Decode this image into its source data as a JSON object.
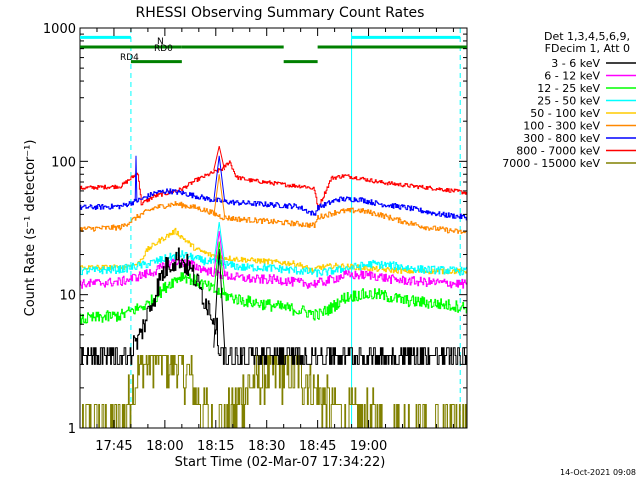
{
  "chart_data": {
    "type": "line",
    "title": "RHESSI Observing Summary Count Rates",
    "xlabel": "Start Time (02-Mar-07 17:34:22)",
    "ylabel": "Count Rate (s⁻¹ detector⁻¹)",
    "y_scale": "log",
    "ylim": [
      1,
      1000
    ],
    "xlim_minutes": [
      -2,
      112
    ],
    "x_ticks": [
      {
        "label": "17:45",
        "minute": 8
      },
      {
        "label": "18:00",
        "minute": 23
      },
      {
        "label": "18:15",
        "minute": 38
      },
      {
        "label": "18:30",
        "minute": 53
      },
      {
        "label": "18:45",
        "minute": 68
      },
      {
        "label": "19:00",
        "minute": 83
      }
    ],
    "y_ticks": [
      {
        "label": "1",
        "value": 1
      },
      {
        "label": "10",
        "value": 10
      },
      {
        "label": "100",
        "value": 100
      },
      {
        "label": "1000",
        "value": 1000
      }
    ],
    "legend_header": [
      "Det 1,3,4,5,6,9,",
      "FDecim 1, Att 0"
    ],
    "legend_placement": "right",
    "timestamp": "14-Oct-2021 09:08",
    "series": [
      {
        "name": "3 - 6 keV",
        "color": "#000000",
        "x": [
          -2,
          5,
          10,
          15,
          20,
          22,
          24,
          27,
          30,
          32,
          34,
          36,
          38,
          39,
          40,
          42,
          44,
          48,
          52,
          56,
          60,
          64,
          68,
          72,
          76,
          80,
          84,
          90,
          96,
          104,
          112
        ],
        "y": [
          3.3,
          3.3,
          3.6,
          4.5,
          10,
          14,
          17,
          19,
          16,
          13,
          10,
          8,
          6,
          4,
          3.8,
          3.5,
          3.5,
          3.5,
          3.5,
          3.5,
          3.5,
          3.5,
          3.5,
          3.5,
          3.5,
          3.5,
          3.5,
          3.5,
          3.5,
          3.5,
          3.5
        ]
      },
      {
        "name": "6 - 12 keV",
        "color": "#ff00ff",
        "x": [
          -2,
          10,
          20,
          26,
          30,
          36,
          40,
          44,
          50,
          56,
          60,
          66,
          70,
          76,
          84,
          90,
          98,
          112
        ],
        "y": [
          12,
          12.5,
          15,
          18,
          17,
          15,
          14,
          13.5,
          13,
          13,
          12.5,
          12,
          12.5,
          14,
          14,
          13,
          12.5,
          12
        ]
      },
      {
        "name": "12 - 25 keV",
        "color": "#00ff00",
        "x": [
          -2,
          10,
          18,
          24,
          28,
          34,
          40,
          46,
          52,
          58,
          64,
          68,
          72,
          76,
          80,
          86,
          94,
          104,
          112
        ],
        "y": [
          6.5,
          7,
          8.5,
          12,
          14,
          12,
          10,
          9,
          8.5,
          8,
          7.5,
          7,
          8,
          9.5,
          10,
          10,
          9,
          8.5,
          8
        ]
      },
      {
        "name": "25 - 50 keV",
        "color": "#00ffff",
        "x": [
          -2,
          10,
          18,
          24,
          28,
          34,
          40,
          46,
          52,
          58,
          64,
          68,
          72,
          78,
          84,
          90,
          98,
          112
        ],
        "y": [
          15,
          15.5,
          17,
          19,
          20,
          18,
          17,
          16,
          16,
          15.5,
          15,
          14.5,
          15,
          16,
          17,
          16.5,
          15.5,
          15
        ]
      },
      {
        "name": "50 - 100 keV",
        "color": "#ffcc00",
        "x": [
          -2,
          10,
          15,
          18,
          22,
          26,
          28,
          32,
          36,
          40,
          44,
          50,
          56,
          62,
          67,
          68,
          74,
          80,
          86,
          94,
          104,
          112
        ],
        "y": [
          16,
          16,
          17,
          22,
          26,
          30,
          27,
          22,
          20,
          19,
          18.5,
          18,
          17.5,
          17,
          15,
          16,
          16.5,
          16,
          15.5,
          15,
          15,
          15
        ]
      },
      {
        "name": "100 - 300 keV",
        "color": "#ff8800",
        "x": [
          -2,
          10,
          16,
          20,
          26,
          32,
          36,
          40,
          44,
          50,
          56,
          62,
          67,
          68,
          74,
          80,
          86,
          92,
          100,
          112
        ],
        "y": [
          31,
          32,
          40,
          45,
          48,
          45,
          42,
          38,
          37,
          36,
          35,
          34,
          33,
          38,
          42,
          43,
          40,
          36,
          32,
          29
        ]
      },
      {
        "name": "300 - 800 keV",
        "color": "#0000ff",
        "x": [
          -2,
          10,
          16,
          20,
          24,
          28,
          32,
          36,
          40,
          44,
          50,
          56,
          62,
          67,
          68,
          74,
          80,
          86,
          94,
          104,
          112
        ],
        "y": [
          45,
          46,
          52,
          58,
          60,
          58,
          55,
          52,
          50,
          49,
          48,
          47,
          46,
          40,
          45,
          52,
          52,
          48,
          45,
          40,
          38
        ]
      },
      {
        "name": "800 - 7000 keV",
        "color": "#ff0000",
        "x": [
          -2,
          10,
          15,
          16,
          20,
          24,
          28,
          32,
          36,
          40,
          42,
          44,
          48,
          52,
          56,
          60,
          64,
          67,
          68,
          72,
          76,
          80,
          86,
          94,
          104,
          112
        ],
        "y": [
          63,
          65,
          82,
          48,
          55,
          58,
          62,
          72,
          80,
          88,
          100,
          76,
          72,
          70,
          68,
          66,
          65,
          62,
          44,
          75,
          78,
          75,
          70,
          66,
          62,
          58
        ]
      },
      {
        "name": "7000 - 15000 keV",
        "color": "#808000",
        "x": [
          -2,
          10,
          15,
          20,
          26,
          30,
          34,
          38,
          42,
          46,
          52,
          58,
          64,
          70,
          76,
          82,
          90,
          100,
          112
        ],
        "y": [
          1,
          1,
          2.6,
          3.5,
          3.2,
          2.4,
          1.4,
          1,
          1.2,
          1.8,
          2.5,
          2.7,
          2.4,
          1.6,
          1.2,
          1.1,
          1,
          1,
          1
        ]
      }
    ],
    "peak_spikes": [
      {
        "series": "3 - 6 keV",
        "minute": 39,
        "value": 22
      },
      {
        "series": "6 - 12 keV",
        "minute": 39,
        "value": 30
      },
      {
        "series": "12 - 25 keV",
        "minute": 39,
        "value": 25
      },
      {
        "series": "25 - 50 keV",
        "minute": 39,
        "value": 35
      },
      {
        "series": "100 - 300 keV",
        "minute": 39,
        "value": 80
      },
      {
        "series": "300 - 800 keV",
        "minute": 39,
        "value": 110
      },
      {
        "series": "800 - 7000 keV",
        "minute": 39,
        "value": 130
      },
      {
        "series": "300 - 800 keV",
        "minute": 14.5,
        "value": 110
      }
    ],
    "vlines_solid_minutes": [
      78
    ],
    "vlines_dashed_minutes": [
      13,
      110
    ],
    "flag_bars": [
      {
        "label": "N",
        "color": "#00ffff",
        "value": 850,
        "segments": [
          [
            -2,
            13
          ],
          [
            78,
            110
          ]
        ]
      },
      {
        "label": "RD0",
        "color": "#008000",
        "value": 720,
        "segments": [
          [
            -2,
            28
          ],
          [
            28,
            58
          ],
          [
            68,
            112
          ]
        ]
      },
      {
        "label": "RD4",
        "color": "#008000",
        "value": 560,
        "segments": [
          [
            13,
            28
          ],
          [
            58,
            68
          ]
        ]
      }
    ]
  }
}
